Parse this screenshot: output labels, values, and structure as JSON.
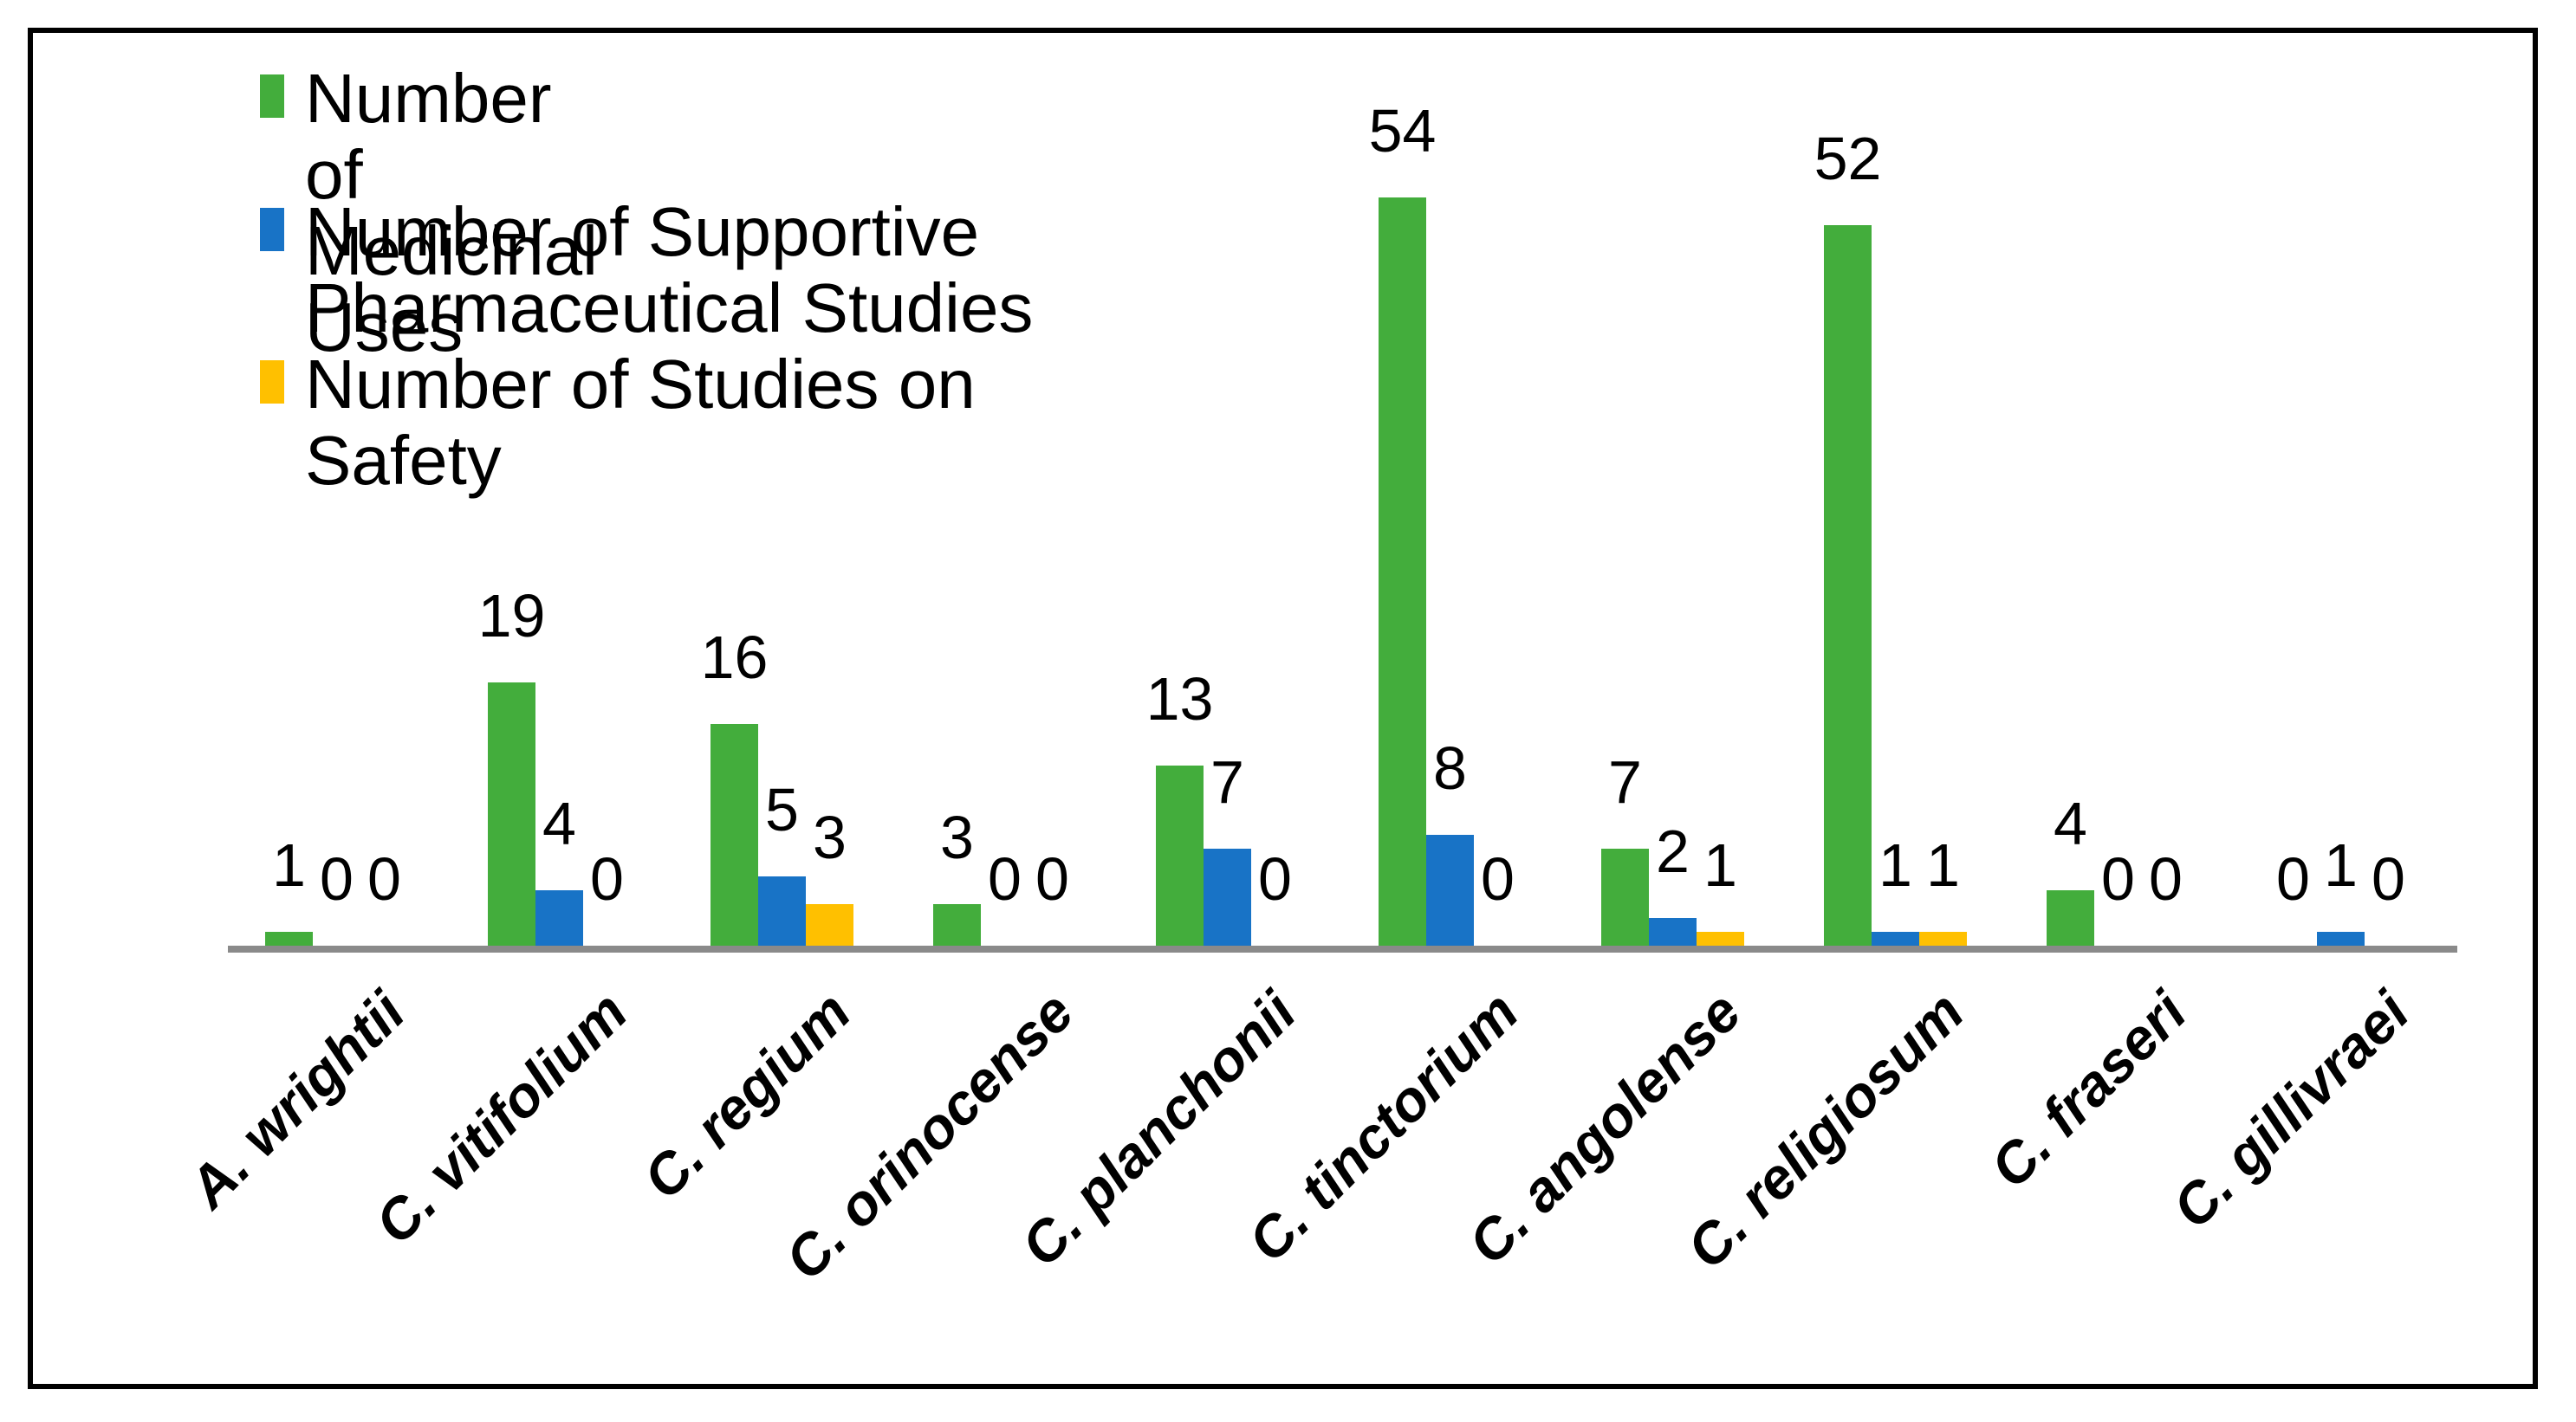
{
  "chart_data": {
    "type": "bar",
    "categories": [
      "A. wrightii",
      "C. vitifolium",
      "C. regium",
      "C. orinocense",
      "C. planchonii",
      "C. tinctorium",
      "C. angolense",
      "C. religiosum",
      "C. fraseri",
      "C. gillivraei"
    ],
    "series": [
      {
        "name": "Number of Medicinal Uses",
        "color": "#43AD3C",
        "values": [
          1,
          19,
          16,
          3,
          13,
          54,
          7,
          52,
          4,
          0
        ]
      },
      {
        "name": "Number of Supportive Pharmaceutical Studies",
        "color": "#1873C6",
        "values": [
          0,
          4,
          5,
          0,
          7,
          8,
          2,
          1,
          0,
          1
        ]
      },
      {
        "name": "Number of Studies on Safety",
        "color": "#FFC000",
        "values": [
          0,
          0,
          3,
          0,
          0,
          0,
          1,
          1,
          0,
          0
        ]
      }
    ],
    "title": "",
    "xlabel": "",
    "ylabel": "",
    "ylim": [
      0,
      54
    ],
    "grid": false,
    "legend_position": "top-left",
    "data_labels": "outside-end",
    "axis_line_color": "#8A8A8A",
    "border_color": "#000000",
    "background_color": "#FFFFFF"
  }
}
